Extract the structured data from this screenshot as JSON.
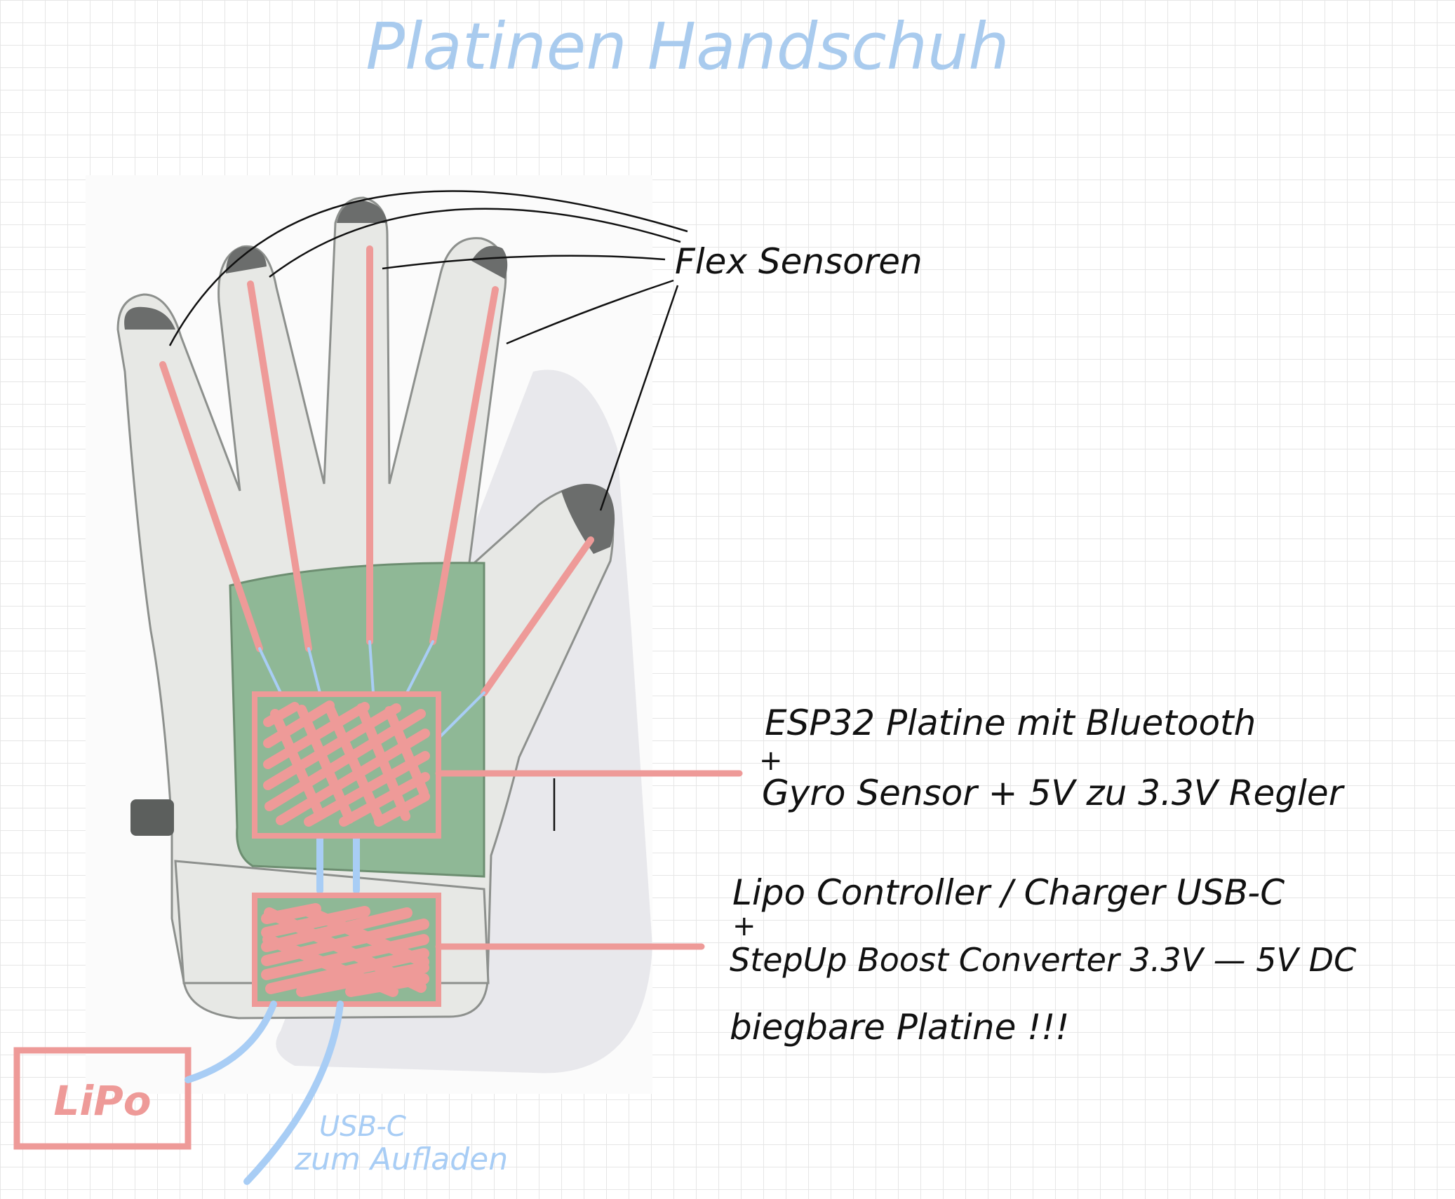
{
  "title": "Platinen Handschuh",
  "labels": {
    "flex_sensors": "Flex Sensoren",
    "esp32_line1": "ESP32 Platine mit Bluetooth",
    "esp32_plus": "+",
    "esp32_line2": "Gyro Sensor + 5V zu 3.3V Regler",
    "lipo_ctrl_line1": "Lipo Controller / Charger USB-C",
    "lipo_ctrl_plus": "+",
    "lipo_ctrl_line2": "StepUp Boost Converter 3.3V — 5V DC",
    "flexible_pcb": "biegbare Platine !!!",
    "lipo": "LiPo",
    "usb_line1": "USB-C",
    "usb_line2": "zum Aufladen"
  },
  "colors": {
    "title": "#a9cbee",
    "ink": "#111111",
    "sensor": "#ee9a98",
    "wire": "#a8cdf5",
    "glove": "#e7e8e5",
    "glove_outline": "#8d908d",
    "board_area": "#8fb896",
    "fingertip": "#6b6d6c"
  }
}
